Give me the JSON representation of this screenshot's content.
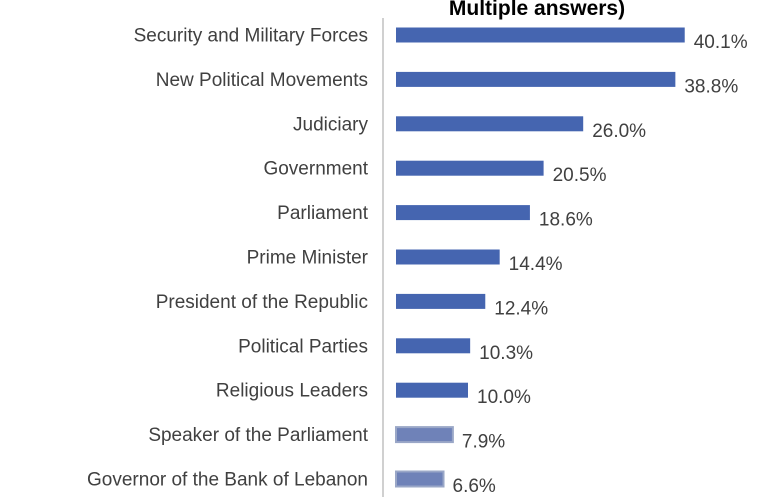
{
  "chart_data": {
    "type": "bar",
    "orientation": "horizontal",
    "title": "Multiple answers)",
    "categories": [
      "Security and Military Forces",
      "New Political Movements",
      "Judiciary",
      "Government",
      "Parliament",
      "Prime Minister",
      "President of the Republic",
      "Political Parties",
      "Religious Leaders",
      "Speaker of the Parliament",
      "Governor of the Bank of Lebanon"
    ],
    "values": [
      40.1,
      38.8,
      26.0,
      20.5,
      18.6,
      14.4,
      12.4,
      10.3,
      10.0,
      7.9,
      6.6
    ],
    "value_labels": [
      "40.1%",
      "38.8%",
      "26.0%",
      "20.5%",
      "18.6%",
      "14.4%",
      "12.4%",
      "10.3%",
      "10.0%",
      "7.9%",
      "6.6%"
    ],
    "xlabel": "",
    "ylabel": "",
    "xlim": [
      0,
      45
    ],
    "grid": false,
    "legend": "none",
    "colors": {
      "bar": "#4565b0",
      "bar_light": "#6f82b8",
      "bar_border": "#9aa7c7",
      "axis": "#c0c0c0",
      "text": "#404040",
      "title": "#000000"
    }
  }
}
